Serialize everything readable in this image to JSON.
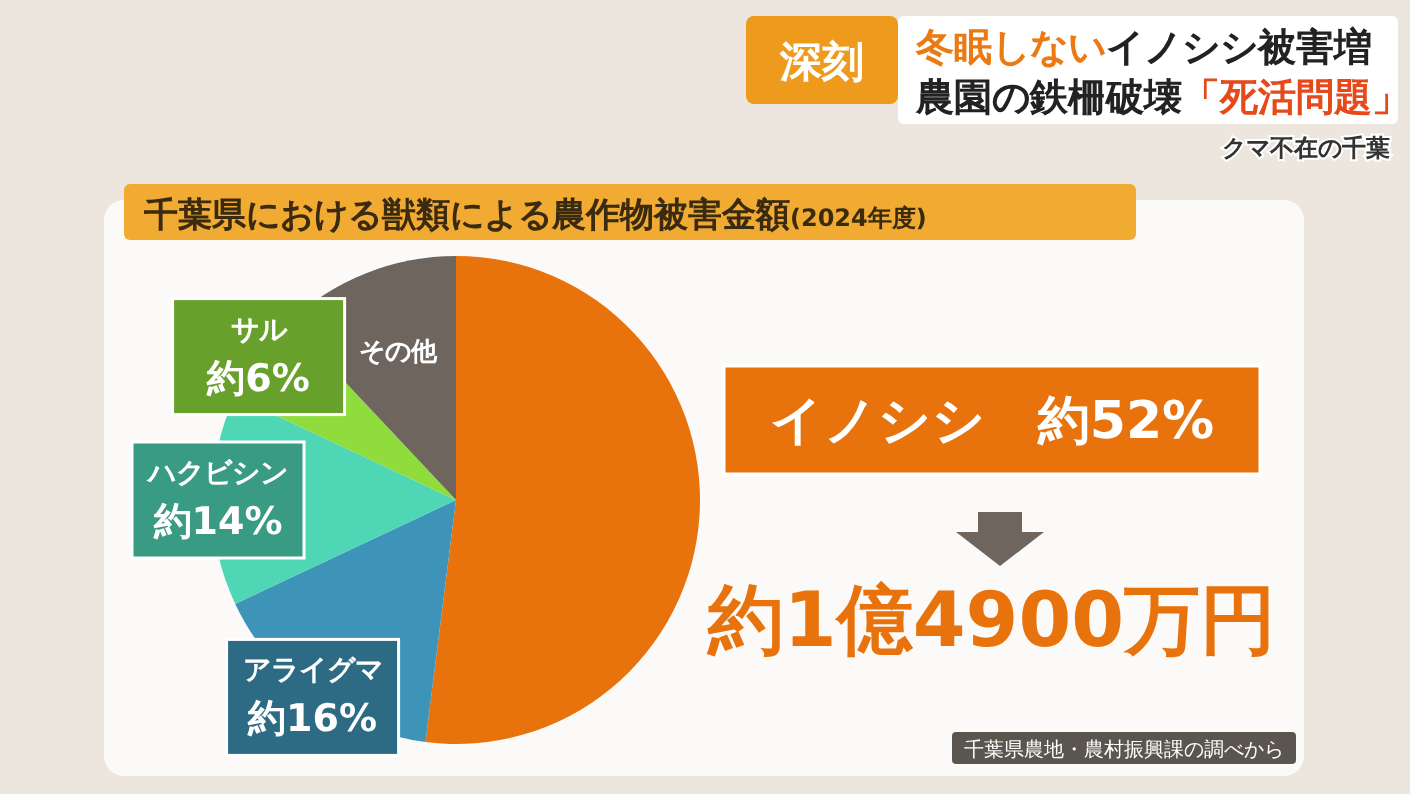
{
  "chart_data": {
    "type": "pie",
    "title": "千葉県における獣類による農作物被害金額",
    "subtitle": "(2024年度)",
    "categories": [
      "イノシシ",
      "アライグマ",
      "ハクビシン",
      "サル",
      "その他"
    ],
    "values": [
      52,
      16,
      14,
      6,
      12
    ],
    "colors": [
      "#e8730c",
      "#3e93b8",
      "#4fd6b4",
      "#90dc3c",
      "#6e665e"
    ],
    "value_labels": [
      "約52%",
      "約16%",
      "約14%",
      "約6%",
      null
    ],
    "annotations": [
      "深刻",
      "冬眠しない",
      "イノシシ被害増",
      "農園の鉄柵破壊",
      "「死活問題」",
      "クマ不在の千葉",
      "約1億4900万円",
      "千葉県農地・農村振興課の調べから"
    ]
  }
}
